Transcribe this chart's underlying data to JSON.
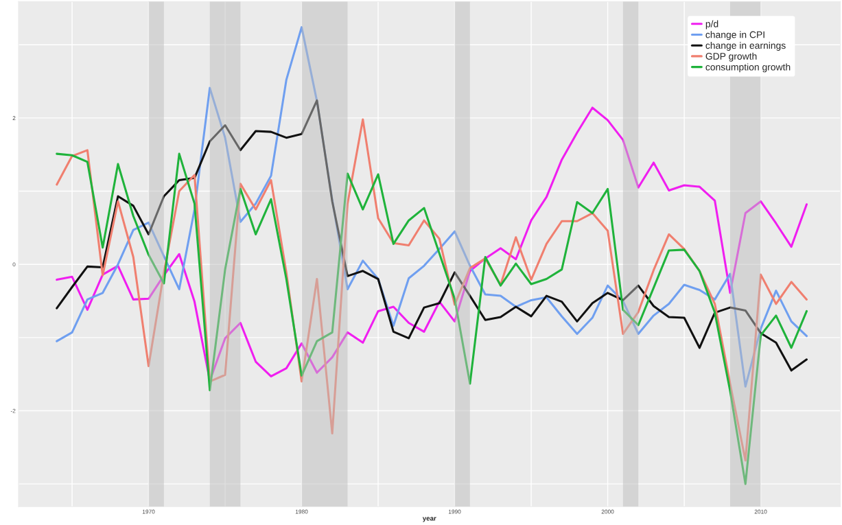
{
  "chart_data": {
    "type": "line",
    "xlabel": "year",
    "x": [
      1964,
      1965,
      1966,
      1967,
      1968,
      1969,
      1970,
      1971,
      1972,
      1973,
      1974,
      1975,
      1976,
      1977,
      1978,
      1979,
      1980,
      1981,
      1982,
      1983,
      1984,
      1985,
      1986,
      1987,
      1988,
      1989,
      1990,
      1991,
      1992,
      1993,
      1994,
      1995,
      1996,
      1997,
      1998,
      1999,
      2000,
      2001,
      2002,
      2003,
      2004,
      2005,
      2006,
      2007,
      2008,
      2009,
      2010,
      2011,
      2012,
      2013
    ],
    "series": [
      {
        "name": "p/d",
        "color": "#f01ef0",
        "values": [
          -0.21,
          -0.17,
          -0.62,
          -0.14,
          -0.02,
          -0.48,
          -0.47,
          -0.15,
          0.14,
          -0.51,
          -1.59,
          -1.01,
          -0.8,
          -1.33,
          -1.53,
          -1.42,
          -1.08,
          -1.48,
          -1.27,
          -0.93,
          -1.07,
          -0.64,
          -0.58,
          -0.8,
          -0.92,
          -0.51,
          -0.78,
          -0.09,
          0.08,
          0.22,
          0.07,
          0.6,
          0.92,
          1.43,
          1.8,
          2.14,
          1.97,
          1.7,
          1.05,
          1.39,
          1.01,
          1.08,
          1.06,
          0.87,
          -0.39,
          0.7,
          0.86,
          0.56,
          0.24,
          0.82
        ]
      },
      {
        "name": "change in CPI",
        "color": "#6f9ff0",
        "values": [
          -1.05,
          -0.93,
          -0.48,
          -0.39,
          0.0,
          0.47,
          0.57,
          0.11,
          -0.34,
          0.75,
          2.41,
          1.73,
          0.58,
          0.83,
          1.21,
          2.52,
          3.24,
          2.23,
          0.88,
          -0.34,
          0.05,
          -0.2,
          -0.84,
          -0.19,
          -0.02,
          0.21,
          0.45,
          -0.02,
          -0.41,
          -0.43,
          -0.58,
          -0.49,
          -0.45,
          -0.71,
          -0.95,
          -0.73,
          -0.29,
          -0.5,
          -0.95,
          -0.7,
          -0.54,
          -0.28,
          -0.35,
          -0.48,
          -0.13,
          -1.67,
          -0.88,
          -0.36,
          -0.78,
          -0.98
        ]
      },
      {
        "name": "change in earnings",
        "color": "#111111",
        "values": [
          -0.6,
          -0.31,
          -0.03,
          -0.04,
          0.93,
          0.8,
          0.41,
          0.93,
          1.15,
          1.18,
          1.68,
          1.9,
          1.56,
          1.82,
          1.81,
          1.73,
          1.78,
          2.24,
          0.86,
          -0.16,
          -0.09,
          -0.2,
          -0.92,
          -1.01,
          -0.59,
          -0.53,
          -0.11,
          -0.43,
          -0.76,
          -0.72,
          -0.58,
          -0.71,
          -0.43,
          -0.51,
          -0.78,
          -0.53,
          -0.39,
          -0.49,
          -0.29,
          -0.57,
          -0.72,
          -0.73,
          -1.14,
          -0.66,
          -0.59,
          -0.63,
          -0.94,
          -1.07,
          -1.45,
          -1.3
        ]
      },
      {
        "name": "GDP growth",
        "color": "#f07f6f",
        "values": [
          1.09,
          1.48,
          1.56,
          -0.15,
          0.86,
          0.1,
          -1.39,
          -0.11,
          1.0,
          1.22,
          -1.6,
          -1.51,
          1.1,
          0.75,
          1.15,
          -0.11,
          -1.6,
          -0.2,
          -2.31,
          0.83,
          1.98,
          0.63,
          0.29,
          0.26,
          0.6,
          0.35,
          -0.55,
          -0.05,
          0.08,
          -0.28,
          0.37,
          -0.21,
          0.28,
          0.59,
          0.59,
          0.7,
          0.46,
          -0.95,
          -0.65,
          -0.08,
          0.41,
          0.21,
          -0.09,
          -0.54,
          -1.63,
          -2.68,
          -0.14,
          -0.54,
          -0.24,
          -0.48
        ]
      },
      {
        "name": "consumption growth",
        "color": "#1fb33b",
        "values": [
          1.51,
          1.49,
          1.4,
          0.23,
          1.37,
          0.66,
          0.13,
          -0.26,
          1.51,
          0.83,
          -1.72,
          -0.07,
          1.03,
          0.41,
          0.89,
          -0.2,
          -1.52,
          -1.05,
          -0.93,
          1.24,
          0.75,
          1.23,
          0.28,
          0.6,
          0.77,
          0.15,
          -0.47,
          -1.63,
          0.1,
          -0.29,
          0.01,
          -0.27,
          -0.2,
          -0.07,
          0.85,
          0.7,
          1.03,
          -0.62,
          -0.83,
          -0.32,
          0.19,
          0.2,
          -0.09,
          -0.66,
          -1.73,
          -3.0,
          -0.97,
          -0.7,
          -1.14,
          -0.64
        ]
      }
    ],
    "bands": [
      {
        "axis": "x",
        "from": 1970,
        "to": 1971,
        "color": "#bdbdbd"
      },
      {
        "axis": "x",
        "from": 1974,
        "to": 1976,
        "color": "#bdbdbd"
      },
      {
        "axis": "x",
        "from": 1980,
        "to": 1983,
        "color": "#bdbdbd"
      },
      {
        "axis": "x",
        "from": 1990,
        "to": 1991,
        "color": "#bdbdbd"
      },
      {
        "axis": "x",
        "from": 2001,
        "to": 2002,
        "color": "#bdbdbd"
      },
      {
        "axis": "x",
        "from": 2008,
        "to": 2010,
        "color": "#bdbdbd"
      }
    ],
    "xlim": [
      1961.5,
      2015.2
    ],
    "ylim": [
      -3.31,
      3.59
    ],
    "xticks": [
      {
        "value": 1965,
        "label": null
      },
      1970,
      {
        "value": 1975,
        "label": null
      },
      1980,
      {
        "value": 1985,
        "label": null
      },
      1990,
      {
        "value": 1995,
        "label": null
      },
      2000,
      {
        "value": 2005,
        "label": null
      },
      2010
    ],
    "yticks": [
      {
        "value": -3,
        "label": null
      },
      -2,
      {
        "value": -1,
        "label": null
      },
      0,
      {
        "value": 1,
        "label": null
      },
      2,
      {
        "value": 3,
        "label": null
      }
    ],
    "grid": true,
    "legend": "top right",
    "line_style": "solid",
    "marker": "none"
  }
}
